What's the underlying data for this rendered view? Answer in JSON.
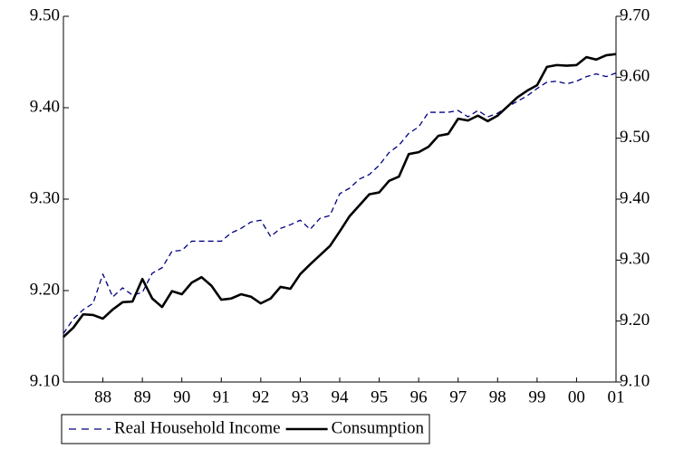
{
  "chart_data": {
    "type": "line",
    "x": [
      1987.5,
      1987.75,
      1988,
      1988.25,
      1988.5,
      1988.75,
      1989,
      1989.25,
      1989.5,
      1989.75,
      1990,
      1990.25,
      1990.5,
      1990.75,
      1991,
      1991.25,
      1991.5,
      1991.75,
      1992,
      1992.25,
      1992.5,
      1992.75,
      1993,
      1993.25,
      1993.5,
      1993.75,
      1994,
      1994.25,
      1994.5,
      1994.75,
      1995,
      1995.25,
      1995.5,
      1995.75,
      1996,
      1996.25,
      1996.5,
      1996.75,
      1997,
      1997.25,
      1997.5,
      1997.75,
      1998,
      1998.25,
      1998.5,
      1998.75,
      1999,
      1999.25,
      1999.5,
      1999.75,
      2000,
      2000.25,
      2000.5,
      2000.75,
      2001,
      2001.25,
      2001.5
    ],
    "series": [
      {
        "name": "Real Household Income",
        "color": "#000080",
        "axis": "y",
        "values": [
          9.153,
          9.169,
          9.179,
          9.186,
          9.218,
          9.193,
          9.203,
          9.195,
          9.198,
          9.219,
          9.225,
          9.243,
          9.244,
          9.254,
          9.254,
          9.254,
          9.254,
          9.263,
          9.268,
          9.275,
          9.277,
          9.259,
          9.268,
          9.272,
          9.277,
          9.267,
          9.279,
          9.282,
          9.306,
          9.312,
          9.322,
          9.327,
          9.337,
          9.351,
          9.359,
          9.372,
          9.379,
          9.395,
          9.395,
          9.395,
          9.397,
          9.39,
          9.397,
          9.39,
          9.394,
          9.401,
          9.407,
          9.413,
          9.421,
          9.428,
          9.429,
          9.426,
          9.429,
          9.434,
          9.437,
          9.434,
          9.438
        ]
      },
      {
        "name": "Consumption",
        "color": "#000000",
        "axis": "y2",
        "values": [
          9.174,
          9.189,
          9.211,
          9.21,
          9.204,
          9.219,
          9.231,
          9.232,
          9.269,
          9.237,
          9.223,
          9.249,
          9.244,
          9.263,
          9.272,
          9.258,
          9.235,
          9.237,
          9.244,
          9.24,
          9.229,
          9.237,
          9.256,
          9.253,
          9.277,
          9.293,
          9.308,
          9.323,
          9.347,
          9.372,
          9.39,
          9.408,
          9.411,
          9.43,
          9.437,
          9.474,
          9.477,
          9.486,
          9.504,
          9.507,
          9.532,
          9.529,
          9.537,
          9.528,
          9.537,
          9.552,
          9.567,
          9.578,
          9.587,
          9.617,
          9.62,
          9.619,
          9.62,
          9.633,
          9.629,
          9.636,
          9.638
        ]
      }
    ],
    "xlim": [
      1987.5,
      2001.5
    ],
    "xticks": [
      {
        "value": 1988.5,
        "label": "88"
      },
      {
        "value": 1989.5,
        "label": "89"
      },
      {
        "value": 1990.5,
        "label": "90"
      },
      {
        "value": 1991.5,
        "label": "91"
      },
      {
        "value": 1992.5,
        "label": "92"
      },
      {
        "value": 1993.5,
        "label": "93"
      },
      {
        "value": 1994.5,
        "label": "94"
      },
      {
        "value": 1995.5,
        "label": "95"
      },
      {
        "value": 1996.5,
        "label": "96"
      },
      {
        "value": 1997.5,
        "label": "97"
      },
      {
        "value": 1998.5,
        "label": "98"
      },
      {
        "value": 1999.5,
        "label": "99"
      },
      {
        "value": 2000.5,
        "label": "00"
      },
      {
        "value": 2001.5,
        "label": "01"
      }
    ],
    "ylim": [
      9.1,
      9.5
    ],
    "yticks": [
      {
        "value": 9.1,
        "label": "9.10"
      },
      {
        "value": 9.2,
        "label": "9.20"
      },
      {
        "value": 9.3,
        "label": "9.30"
      },
      {
        "value": 9.4,
        "label": "9.40"
      },
      {
        "value": 9.5,
        "label": "9.50"
      }
    ],
    "y2lim": [
      9.1,
      9.7
    ],
    "y2ticks": [
      {
        "value": 9.1,
        "label": "9.10"
      },
      {
        "value": 9.2,
        "label": "9.20"
      },
      {
        "value": 9.3,
        "label": "9.30"
      },
      {
        "value": 9.4,
        "label": "9.40"
      },
      {
        "value": 9.5,
        "label": "9.50"
      },
      {
        "value": 9.6,
        "label": "9.60"
      },
      {
        "value": 9.7,
        "label": "9.70"
      }
    ],
    "legend": "bottom"
  }
}
